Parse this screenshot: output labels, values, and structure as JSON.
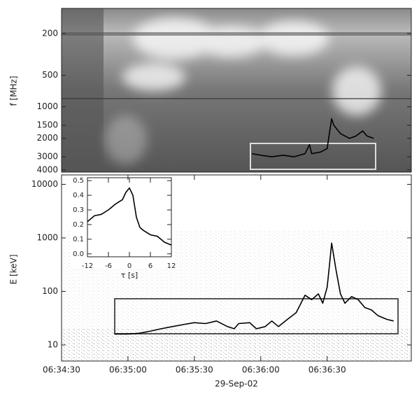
{
  "chart_data": [
    {
      "type": "line",
      "y_label": "f [MHz]",
      "yscale": "log",
      "y_reversed": true,
      "xlim": [
        23670,
        23828
      ],
      "ylim": [
        115,
        4200
      ],
      "yticks": [
        200,
        500,
        1000,
        1500,
        2000,
        3000,
        4000
      ],
      "x": [
        23756,
        23760,
        23765,
        23770,
        23775,
        23780,
        23782,
        23783,
        23787,
        23790,
        23791,
        23792,
        23793,
        23796,
        23800,
        23803,
        23806,
        23808,
        23811
      ],
      "series": [
        {
          "color": "#000000",
          "values": [
            2800,
            2900,
            3000,
            2900,
            3000,
            2800,
            2300,
            2800,
            2700,
            2500,
            1800,
            1300,
            1500,
            1800,
            2000,
            1900,
            1700,
            1900,
            2000
          ]
        }
      ]
    },
    {
      "type": "line",
      "y_label": "E [keV]",
      "x_label": "29-Sep-02",
      "yscale": "log",
      "xlim": [
        23670,
        23828
      ],
      "ylim": [
        5,
        15000
      ],
      "yticks": [
        10,
        100,
        1000,
        10000
      ],
      "xticks": [
        {
          "value": 23670,
          "label": "06:34:30"
        },
        {
          "value": 23700,
          "label": "06:35:00"
        },
        {
          "value": 23730,
          "label": "06:35:30"
        },
        {
          "value": 23760,
          "label": "06:36:00"
        },
        {
          "value": 23790,
          "label": "06:36:30"
        }
      ],
      "x": [
        23694,
        23700,
        23705,
        23710,
        23715,
        23720,
        23725,
        23730,
        23735,
        23740,
        23745,
        23748,
        23750,
        23755,
        23758,
        23762,
        23765,
        23768,
        23772,
        23776,
        23780,
        23783,
        23786,
        23788,
        23790,
        23791,
        23792,
        23794,
        23796,
        23798,
        23801,
        23804,
        23807,
        23810,
        23813,
        23817,
        23820
      ],
      "series": [
        {
          "color": "#000000",
          "values": [
            16,
            16,
            16.5,
            18,
            20,
            22,
            24,
            26,
            25,
            28,
            22,
            20,
            25,
            26,
            20,
            22,
            28,
            22,
            30,
            40,
            85,
            70,
            90,
            60,
            120,
            300,
            800,
            250,
            90,
            60,
            80,
            70,
            50,
            45,
            35,
            30,
            28
          ]
        }
      ]
    },
    {
      "type": "line",
      "x_label": "τ [s]",
      "xlim": [
        -12,
        12
      ],
      "ylim": [
        -0.02,
        0.52
      ],
      "xticks": [
        -12,
        -6,
        0,
        6,
        12
      ],
      "yticks": [
        {
          "value": 0,
          "label": "0.0"
        },
        0.1,
        0.2,
        0.3,
        0.4,
        0.5
      ],
      "x": [
        -12,
        -10,
        -8,
        -6,
        -4,
        -2,
        -1,
        0,
        1,
        2,
        3,
        4,
        6,
        8,
        10,
        12
      ],
      "series": [
        {
          "color": "#000000",
          "values": [
            0.22,
            0.26,
            0.27,
            0.3,
            0.34,
            0.37,
            0.42,
            0.45,
            0.4,
            0.25,
            0.18,
            0.16,
            0.13,
            0.12,
            0.08,
            0.06
          ]
        }
      ]
    }
  ]
}
